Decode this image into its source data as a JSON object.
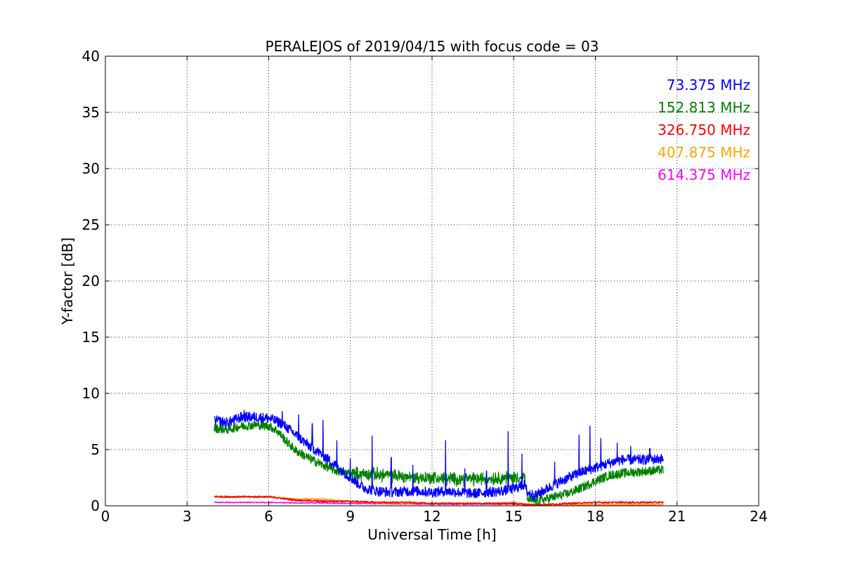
{
  "chart_data": {
    "type": "line",
    "title": "PERALEJOS of 2019/04/15 with focus code = 03",
    "xlabel": "Universal Time [h]",
    "ylabel": "Y-factor [dB]",
    "xlim": [
      0,
      24
    ],
    "ylim": [
      0,
      40
    ],
    "xticks": [
      0,
      3,
      6,
      9,
      12,
      15,
      18,
      21,
      24
    ],
    "yticks": [
      0,
      5,
      10,
      15,
      20,
      25,
      30,
      35,
      40
    ],
    "grid": true,
    "legend_position": "top-right",
    "series": [
      {
        "name": "73.375 MHz",
        "color": "#0000ff",
        "x": [
          4.0,
          4.5,
          5.0,
          5.5,
          6.0,
          6.5,
          7.0,
          7.5,
          8.0,
          8.5,
          9.0,
          9.5,
          10.0,
          10.5,
          11.0,
          11.5,
          12.0,
          12.5,
          13.0,
          13.5,
          14.0,
          14.5,
          15.0,
          15.4,
          15.5,
          15.8,
          16.0,
          16.5,
          17.0,
          17.5,
          18.0,
          18.5,
          19.0,
          19.5,
          20.0,
          20.5
        ],
        "y": [
          7.6,
          7.4,
          7.9,
          7.9,
          7.8,
          7.3,
          6.3,
          5.3,
          4.5,
          3.5,
          2.5,
          1.6,
          1.3,
          1.2,
          1.3,
          1.3,
          1.2,
          1.3,
          1.2,
          1.1,
          1.2,
          1.3,
          1.5,
          1.9,
          1.2,
          0.9,
          1.2,
          1.9,
          2.5,
          3.0,
          3.4,
          3.8,
          4.1,
          4.1,
          4.1,
          4.2
        ],
        "spikes": [
          [
            5.1,
            8.5
          ],
          [
            6.5,
            8.4
          ],
          [
            7.1,
            8.1
          ],
          [
            7.6,
            7.3
          ],
          [
            8.0,
            7.6
          ],
          [
            8.5,
            5.8
          ],
          [
            9.0,
            4.2
          ],
          [
            9.8,
            6.2
          ],
          [
            10.5,
            4.3
          ],
          [
            11.3,
            3.6
          ],
          [
            12.5,
            5.8
          ],
          [
            13.2,
            3.3
          ],
          [
            14.0,
            3.1
          ],
          [
            14.8,
            6.6
          ],
          [
            15.3,
            4.6
          ],
          [
            16.5,
            3.9
          ],
          [
            17.4,
            6.3
          ],
          [
            17.8,
            7.1
          ],
          [
            18.2,
            6.0
          ],
          [
            18.8,
            5.6
          ],
          [
            19.3,
            5.3
          ],
          [
            20.0,
            5.1
          ]
        ]
      },
      {
        "name": "152.813 MHz",
        "color": "#008000",
        "x": [
          4.0,
          4.5,
          5.0,
          5.5,
          6.0,
          6.3,
          6.7,
          7.0,
          7.5,
          8.0,
          8.5,
          9.0,
          9.5,
          10.0,
          10.5,
          11.0,
          11.5,
          12.0,
          12.5,
          13.0,
          13.5,
          14.0,
          14.5,
          15.0,
          15.4,
          15.5,
          15.8,
          16.0,
          16.5,
          17.0,
          17.5,
          18.0,
          18.5,
          19.0,
          19.5,
          20.0,
          20.5
        ],
        "y": [
          6.9,
          6.8,
          7.1,
          7.2,
          7.1,
          6.7,
          5.6,
          4.9,
          4.2,
          3.6,
          3.1,
          2.9,
          2.8,
          2.8,
          2.7,
          2.6,
          2.5,
          2.5,
          2.4,
          2.4,
          2.4,
          2.4,
          2.5,
          2.5,
          2.6,
          0.6,
          0.4,
          0.5,
          0.8,
          1.1,
          1.6,
          2.2,
          2.7,
          2.9,
          3.0,
          3.1,
          3.2
        ]
      },
      {
        "name": "326.750 MHz",
        "color": "#ff0000",
        "x": [
          4.0,
          5.0,
          6.0,
          7.0,
          8.0,
          9.0,
          10.0,
          11.0,
          12.0,
          13.0,
          14.0,
          15.0,
          15.5,
          16.0,
          17.0,
          18.0,
          19.0,
          20.0,
          20.5
        ],
        "y": [
          0.8,
          0.8,
          0.8,
          0.5,
          0.4,
          0.4,
          0.3,
          0.3,
          0.2,
          0.2,
          0.2,
          0.2,
          0.1,
          0.1,
          0.2,
          0.3,
          0.3,
          0.3,
          0.3
        ]
      },
      {
        "name": "407.875 MHz",
        "color": "#ffa500",
        "x": [
          4.0,
          5.0,
          6.0,
          6.5,
          7.0,
          8.0,
          8.5,
          9.0,
          9.5,
          10.0,
          11.0,
          12.0,
          13.0,
          14.0,
          15.0,
          15.5,
          16.0,
          17.0,
          18.0,
          19.0,
          20.0,
          20.5
        ],
        "y": [
          0.85,
          0.8,
          0.8,
          0.7,
          0.6,
          0.6,
          0.5,
          0.35,
          0.3,
          0.25,
          0.2,
          0.2,
          0.2,
          0.2,
          0.3,
          0.15,
          0.1,
          0.1,
          0.1,
          0.1,
          0.1,
          0.1
        ]
      },
      {
        "name": "614.375 MHz",
        "color": "#ff00ff",
        "x": [
          4.0,
          5.0,
          6.0,
          7.0,
          8.0,
          9.0,
          10.0,
          11.0,
          12.0,
          13.0,
          14.0,
          15.0,
          16.0,
          17.0,
          18.0,
          19.0,
          20.0,
          20.5
        ],
        "y": [
          0.3,
          0.3,
          0.3,
          0.25,
          0.25,
          0.2,
          0.2,
          0.15,
          0.15,
          0.15,
          0.15,
          0.15,
          0.1,
          0.1,
          0.1,
          0.1,
          0.1,
          0.1
        ]
      }
    ]
  }
}
